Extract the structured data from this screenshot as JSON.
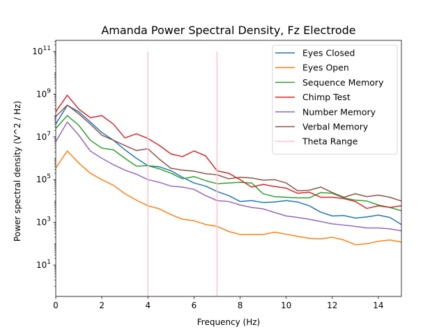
{
  "chart_data": {
    "type": "line",
    "title": "Amanda Power Spectral Density, Fz Electrode",
    "xlabel": "Frequency (Hz)",
    "ylabel": "Power spectral density (V^2 / Hz)",
    "yscale": "log",
    "xlim": [
      0,
      15
    ],
    "ylim": [
      0.3,
      100000000000.0
    ],
    "x_ticks": [
      0,
      2,
      4,
      6,
      8,
      10,
      12,
      14
    ],
    "y_ticks": [
      {
        "value": 10,
        "base": "10",
        "exp": "1"
      },
      {
        "value": 1000,
        "base": "10",
        "exp": "3"
      },
      {
        "value": 100000,
        "base": "10",
        "exp": "5"
      },
      {
        "value": 10000000,
        "base": "10",
        "exp": "7"
      },
      {
        "value": 1000000000,
        "base": "10",
        "exp": "9"
      },
      {
        "value": 100000000000,
        "base": "10",
        "exp": "11"
      }
    ],
    "grid": false,
    "legend_position": "top-right",
    "x": [
      0,
      0.5,
      1,
      1.5,
      2,
      2.5,
      3,
      3.5,
      4,
      4.5,
      5,
      5.5,
      6,
      6.5,
      7,
      7.5,
      8,
      8.5,
      9,
      9.5,
      10,
      10.5,
      11,
      11.5,
      12,
      12.5,
      13,
      13.5,
      14,
      14.5,
      15
    ],
    "series": [
      {
        "name": "Eyes Closed",
        "color": "#1f77b4",
        "values": [
          40000000,
          300000000,
          150000000,
          50000000,
          16000000,
          7000000,
          2500000,
          1000000,
          450000,
          400000,
          260000,
          130000,
          70000,
          50000,
          28000,
          18000,
          9500,
          10500,
          8500,
          9000,
          10500,
          9000,
          6000,
          3000,
          2000,
          2100,
          1600,
          1800,
          2200,
          1700,
          800
        ]
      },
      {
        "name": "Eyes Open",
        "color": "#ff7f0e",
        "values": [
          350000,
          2200000,
          600000,
          200000,
          100000,
          55000,
          22000,
          11000,
          6000,
          4300,
          2300,
          1400,
          1200,
          800,
          650,
          380,
          270,
          270,
          270,
          350,
          280,
          220,
          180,
          170,
          200,
          150,
          90,
          100,
          130,
          150,
          120
        ]
      },
      {
        "name": "Sequence Memory",
        "color": "#2ca02c",
        "values": [
          25000000,
          100000000,
          35000000,
          7000000,
          3000000,
          2500000,
          1000000,
          430000,
          450000,
          320000,
          200000,
          110000,
          140000,
          90000,
          65000,
          70000,
          75000,
          70000,
          22000,
          16000,
          15000,
          14000,
          14000,
          25000,
          23000,
          14000,
          11000,
          10000,
          6500,
          5000,
          3500
        ]
      },
      {
        "name": "Chimp Test",
        "color": "#d62728",
        "values": [
          150000000,
          900000000,
          200000000,
          80000000,
          100000000,
          40000000,
          9000000,
          14000000,
          8500000,
          4000000,
          1600000,
          1200000,
          2200000,
          1300000,
          260000,
          200000,
          100000,
          45000,
          60000,
          48000,
          40000,
          23000,
          26000,
          15000,
          15000,
          13000,
          9500,
          4500,
          6000,
          5000,
          6000
        ]
      },
      {
        "name": "Number Memory",
        "color": "#9467bd",
        "values": [
          6000000,
          50000000,
          12000000,
          2200000,
          1000000,
          500000,
          280000,
          180000,
          100000,
          75000,
          50000,
          45000,
          35000,
          18000,
          10500,
          9500,
          6500,
          5000,
          4300,
          2900,
          2000,
          1700,
          1400,
          1100,
          850,
          750,
          650,
          550,
          550,
          500,
          400
        ]
      },
      {
        "name": "Verbal Memory",
        "color": "#8c564b",
        "values": [
          90000000,
          310000000,
          120000000,
          40000000,
          12000000,
          7000000,
          4000000,
          2300000,
          2800000,
          900000,
          340000,
          280000,
          250000,
          190000,
          170000,
          110000,
          130000,
          120000,
          95000,
          100000,
          70000,
          30000,
          32000,
          45000,
          25000,
          15000,
          22000,
          16000,
          19000,
          15000,
          10000
        ]
      },
      {
        "name": "Theta Range",
        "color": "#ffc0cb",
        "vlines": [
          4,
          7
        ],
        "vline_range": [
          0.3,
          100000000000
        ]
      }
    ]
  }
}
